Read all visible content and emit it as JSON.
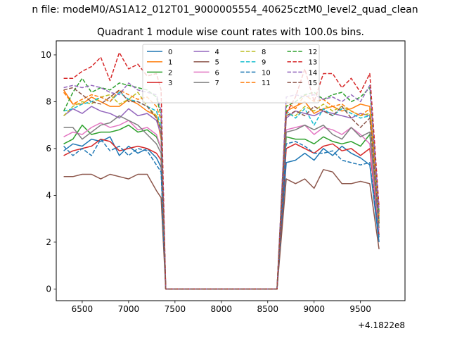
{
  "chart_data": {
    "type": "line",
    "suptitle": "n file: modeM0/AS1A12_012T01_9000005554_40625cztM0_level2_quad_clean",
    "title": "Quadrant 1 module wise count rates with 100.0s bins.",
    "xlabel": "",
    "ylabel": "",
    "offset_label": "+4.1822e8",
    "xlim": [
      6220,
      9980
    ],
    "ylim": [
      -0.5,
      10.6
    ],
    "xticks": [
      6500,
      7000,
      7500,
      8000,
      8500,
      9000,
      9500
    ],
    "yticks": [
      0,
      2,
      4,
      6,
      8,
      10
    ],
    "grid": false,
    "legend_position": "top-center",
    "legend_columns": 4,
    "x": [
      6300,
      6400,
      6500,
      6600,
      6700,
      6800,
      6900,
      7000,
      7100,
      7200,
      7300,
      7350,
      7400,
      7500,
      7600,
      7700,
      7800,
      7900,
      8000,
      8100,
      8200,
      8300,
      8400,
      8500,
      8600,
      8700,
      8800,
      8900,
      9000,
      9100,
      9200,
      9300,
      9400,
      9500,
      9600,
      9700
    ],
    "series": [
      {
        "name": "0",
        "color": "#1f77b4",
        "dash": "solid",
        "values": [
          5.9,
          6.2,
          6.1,
          6.4,
          6.3,
          6.5,
          5.7,
          6.1,
          5.8,
          6.0,
          5.6,
          5.2,
          0,
          0,
          0,
          0,
          0,
          0,
          0,
          0,
          0,
          0,
          0,
          0,
          0,
          5.4,
          5.5,
          5.8,
          5.5,
          6.0,
          5.7,
          6.1,
          5.8,
          5.6,
          5.3,
          2.0
        ]
      },
      {
        "name": "1",
        "color": "#ff7f0e",
        "dash": "solid",
        "values": [
          8.5,
          7.9,
          7.9,
          8.2,
          8.0,
          7.8,
          7.8,
          8.1,
          7.9,
          7.6,
          7.4,
          6.4,
          0,
          0,
          0,
          0,
          0,
          0,
          0,
          0,
          0,
          0,
          0,
          0,
          0,
          7.6,
          7.8,
          8.0,
          7.5,
          7.7,
          7.8,
          7.6,
          7.7,
          7.9,
          7.8,
          3.2
        ]
      },
      {
        "name": "2",
        "color": "#2ca02c",
        "dash": "solid",
        "values": [
          6.2,
          6.4,
          7.0,
          6.6,
          6.7,
          6.7,
          6.8,
          7.0,
          6.7,
          6.8,
          6.5,
          6.0,
          0,
          0,
          0,
          0,
          0,
          0,
          0,
          0,
          0,
          0,
          0,
          0,
          0,
          6.5,
          6.4,
          6.4,
          6.2,
          6.5,
          6.3,
          6.2,
          6.3,
          6.1,
          6.6,
          2.8
        ]
      },
      {
        "name": "3",
        "color": "#d62728",
        "dash": "solid",
        "values": [
          5.7,
          5.9,
          6.0,
          6.1,
          6.4,
          6.3,
          5.9,
          6.0,
          6.1,
          6.0,
          5.8,
          5.5,
          0,
          0,
          0,
          0,
          0,
          0,
          0,
          0,
          0,
          0,
          0,
          0,
          0,
          6.0,
          6.2,
          6.0,
          5.8,
          6.1,
          6.2,
          5.9,
          6.0,
          5.7,
          6.0,
          2.3
        ]
      },
      {
        "name": "4",
        "color": "#9467bd",
        "dash": "solid",
        "values": [
          7.4,
          7.7,
          7.5,
          7.8,
          7.6,
          7.5,
          7.3,
          7.7,
          7.4,
          7.5,
          7.2,
          6.6,
          0,
          0,
          0,
          0,
          0,
          0,
          0,
          0,
          0,
          0,
          0,
          0,
          0,
          7.3,
          7.6,
          7.5,
          7.4,
          7.6,
          7.5,
          7.4,
          7.3,
          7.5,
          7.4,
          2.9
        ]
      },
      {
        "name": "5",
        "color": "#8c564b",
        "dash": "solid",
        "values": [
          4.8,
          4.8,
          4.9,
          4.9,
          4.7,
          4.9,
          4.8,
          4.7,
          4.9,
          4.9,
          4.2,
          3.9,
          0,
          0,
          0,
          0,
          0,
          0,
          0,
          0,
          0,
          0,
          0,
          0,
          0,
          4.7,
          4.5,
          4.7,
          4.3,
          5.1,
          5.0,
          4.5,
          4.5,
          4.6,
          4.5,
          1.7
        ]
      },
      {
        "name": "6",
        "color": "#e377c2",
        "dash": "solid",
        "values": [
          6.5,
          6.7,
          6.6,
          6.9,
          7.1,
          6.9,
          7.0,
          7.2,
          6.8,
          6.9,
          6.6,
          6.0,
          0,
          0,
          0,
          0,
          0,
          0,
          0,
          0,
          0,
          0,
          0,
          0,
          0,
          6.8,
          6.9,
          7.0,
          6.6,
          6.9,
          6.8,
          6.6,
          6.9,
          6.6,
          6.2,
          2.5
        ]
      },
      {
        "name": "7",
        "color": "#7f7f7f",
        "dash": "solid",
        "values": [
          6.9,
          6.9,
          6.4,
          6.7,
          7.0,
          7.1,
          7.4,
          7.2,
          7.0,
          6.6,
          6.2,
          5.8,
          0,
          0,
          0,
          0,
          0,
          0,
          0,
          0,
          0,
          0,
          0,
          0,
          0,
          6.7,
          6.8,
          7.0,
          6.8,
          7.0,
          6.6,
          6.4,
          6.9,
          6.5,
          6.7,
          2.6
        ]
      },
      {
        "name": "8",
        "color": "#bcbd22",
        "dash": "dashed",
        "values": [
          7.4,
          7.8,
          8.0,
          7.9,
          8.2,
          8.3,
          7.9,
          8.1,
          8.4,
          7.8,
          7.4,
          6.8,
          0,
          0,
          0,
          0,
          0,
          0,
          0,
          0,
          0,
          0,
          0,
          0,
          0,
          7.5,
          7.4,
          7.8,
          7.6,
          7.9,
          7.6,
          7.8,
          7.6,
          7.4,
          7.5,
          2.9
        ]
      },
      {
        "name": "9",
        "color": "#17becf",
        "dash": "dashed",
        "values": [
          7.6,
          7.7,
          7.9,
          8.0,
          8.2,
          8.0,
          8.4,
          8.1,
          8.0,
          7.8,
          7.6,
          6.9,
          0,
          0,
          0,
          0,
          0,
          0,
          0,
          0,
          0,
          0,
          0,
          0,
          0,
          7.6,
          7.3,
          7.7,
          7.0,
          7.7,
          7.4,
          7.7,
          7.5,
          7.3,
          7.4,
          3.0
        ]
      },
      {
        "name": "10",
        "color": "#1f77b4",
        "dash": "dashed",
        "values": [
          6.1,
          5.7,
          6.0,
          5.7,
          6.4,
          5.9,
          6.1,
          5.7,
          6.0,
          5.9,
          5.3,
          5.0,
          0,
          0,
          0,
          0,
          0,
          0,
          0,
          0,
          0,
          0,
          0,
          0,
          0,
          6.2,
          6.3,
          6.1,
          5.8,
          5.8,
          5.9,
          5.5,
          5.4,
          5.3,
          5.4,
          2.2
        ]
      },
      {
        "name": "11",
        "color": "#ff7f0e",
        "dash": "dashed",
        "values": [
          8.4,
          7.9,
          8.1,
          8.3,
          8.2,
          8.0,
          8.5,
          8.3,
          8.1,
          8.2,
          7.8,
          7.2,
          0,
          0,
          0,
          0,
          0,
          0,
          0,
          0,
          0,
          0,
          0,
          0,
          0,
          8.0,
          7.7,
          8.3,
          8.0,
          8.1,
          7.8,
          7.9,
          7.6,
          7.4,
          7.7,
          3.1
        ]
      },
      {
        "name": "12",
        "color": "#2ca02c",
        "dash": "dashed",
        "values": [
          7.6,
          8.4,
          9.0,
          8.4,
          8.6,
          8.5,
          8.8,
          8.7,
          8.6,
          8.5,
          8.2,
          7.4,
          0,
          0,
          0,
          0,
          0,
          0,
          0,
          0,
          0,
          0,
          0,
          0,
          0,
          7.8,
          8.0,
          8.3,
          8.4,
          8.1,
          8.3,
          8.4,
          8.0,
          8.2,
          8.6,
          3.3
        ]
      },
      {
        "name": "13",
        "color": "#d62728",
        "dash": "dashed",
        "values": [
          9.0,
          9.0,
          9.3,
          9.5,
          9.9,
          8.9,
          10.1,
          9.4,
          9.6,
          9.1,
          9.2,
          8.5,
          0,
          0,
          0,
          0,
          0,
          0,
          0,
          0,
          0,
          0,
          0,
          0,
          0,
          7.5,
          8.2,
          9.4,
          8.0,
          9.2,
          9.2,
          8.6,
          9.0,
          8.4,
          9.2,
          3.5
        ]
      },
      {
        "name": "14",
        "color": "#9467bd",
        "dash": "dashed",
        "values": [
          8.6,
          8.7,
          8.6,
          8.7,
          8.6,
          8.4,
          8.3,
          8.8,
          8.5,
          8.4,
          8.3,
          7.6,
          0,
          0,
          0,
          0,
          0,
          0,
          0,
          0,
          0,
          0,
          0,
          0,
          0,
          8.2,
          8.3,
          8.2,
          8.3,
          8.1,
          8.2,
          8.0,
          8.3,
          8.0,
          8.7,
          3.3
        ]
      },
      {
        "name": "15",
        "color": "#8c564b",
        "dash": "dashed",
        "values": [
          8.5,
          8.6,
          8.3,
          8.0,
          7.9,
          8.2,
          8.5,
          8.0,
          8.0,
          7.8,
          7.3,
          6.8,
          0,
          0,
          0,
          0,
          0,
          0,
          0,
          0,
          0,
          0,
          0,
          0,
          0,
          7.4,
          7.6,
          7.4,
          7.8,
          7.6,
          7.4,
          7.8,
          7.3,
          6.9,
          7.3,
          2.8
        ]
      }
    ]
  }
}
